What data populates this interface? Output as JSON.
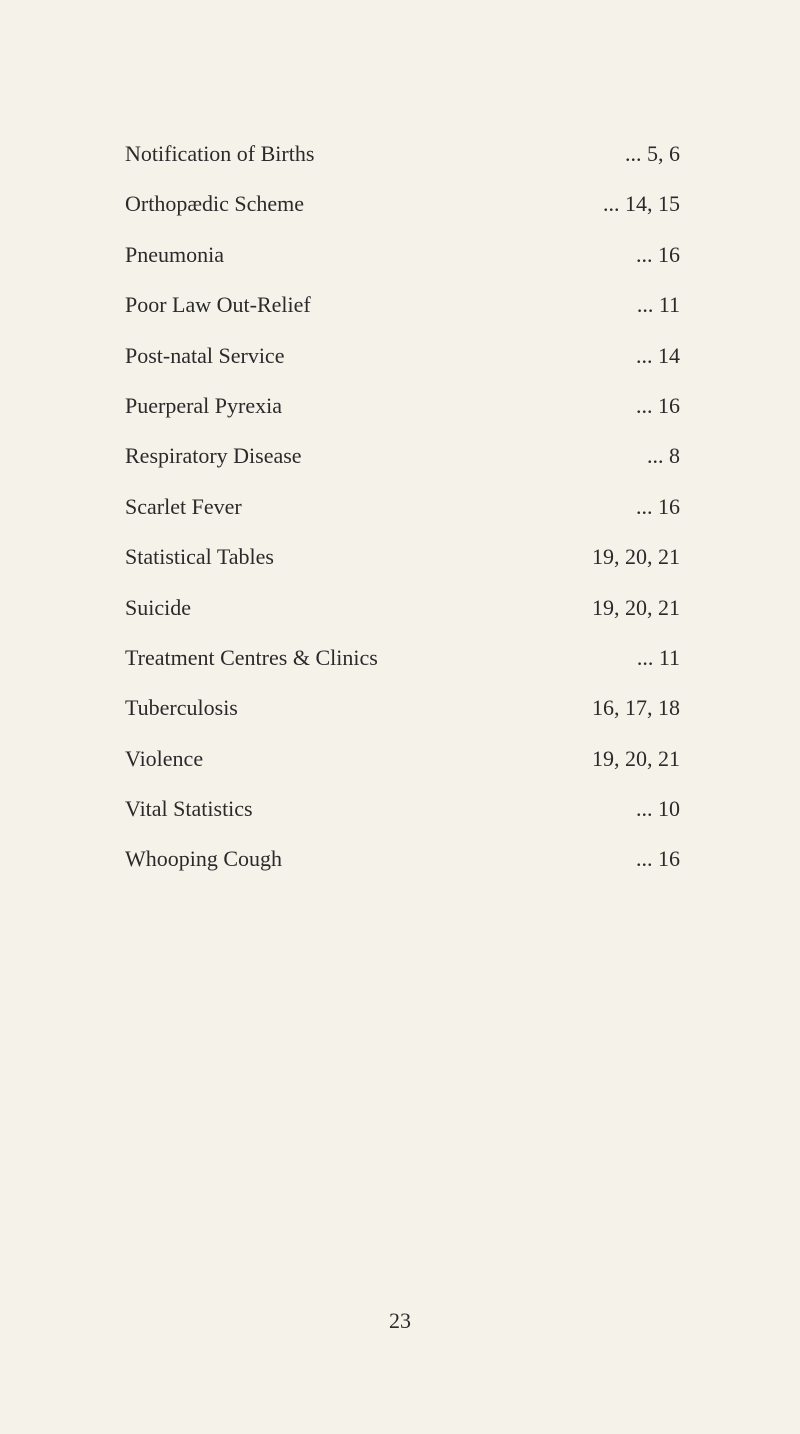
{
  "index": [
    {
      "label": "Notification of Births",
      "pages": "... 5, 6"
    },
    {
      "label": "Orthopædic Scheme",
      "pages": "... 14, 15"
    },
    {
      "label": "Pneumonia",
      "pages": "... 16"
    },
    {
      "label": "Poor Law Out-Relief",
      "pages": "... 11"
    },
    {
      "label": "Post-natal Service",
      "pages": "... 14"
    },
    {
      "label": "Puerperal Pyrexia",
      "pages": "... 16"
    },
    {
      "label": "Respiratory Disease",
      "pages": "... 8"
    },
    {
      "label": "Scarlet Fever",
      "pages": "... 16"
    },
    {
      "label": "Statistical Tables",
      "pages": "19, 20, 21"
    },
    {
      "label": "Suicide",
      "pages": "19, 20, 21"
    },
    {
      "label": "Treatment Centres & Clinics",
      "pages": "... 11"
    },
    {
      "label": "Tuberculosis",
      "pages": "16, 17, 18"
    },
    {
      "label": "Violence",
      "pages": "19, 20, 21"
    },
    {
      "label": "Vital Statistics",
      "pages": "... 10"
    },
    {
      "label": "Whooping Cough",
      "pages": "... 16"
    }
  ],
  "page_number": "23"
}
